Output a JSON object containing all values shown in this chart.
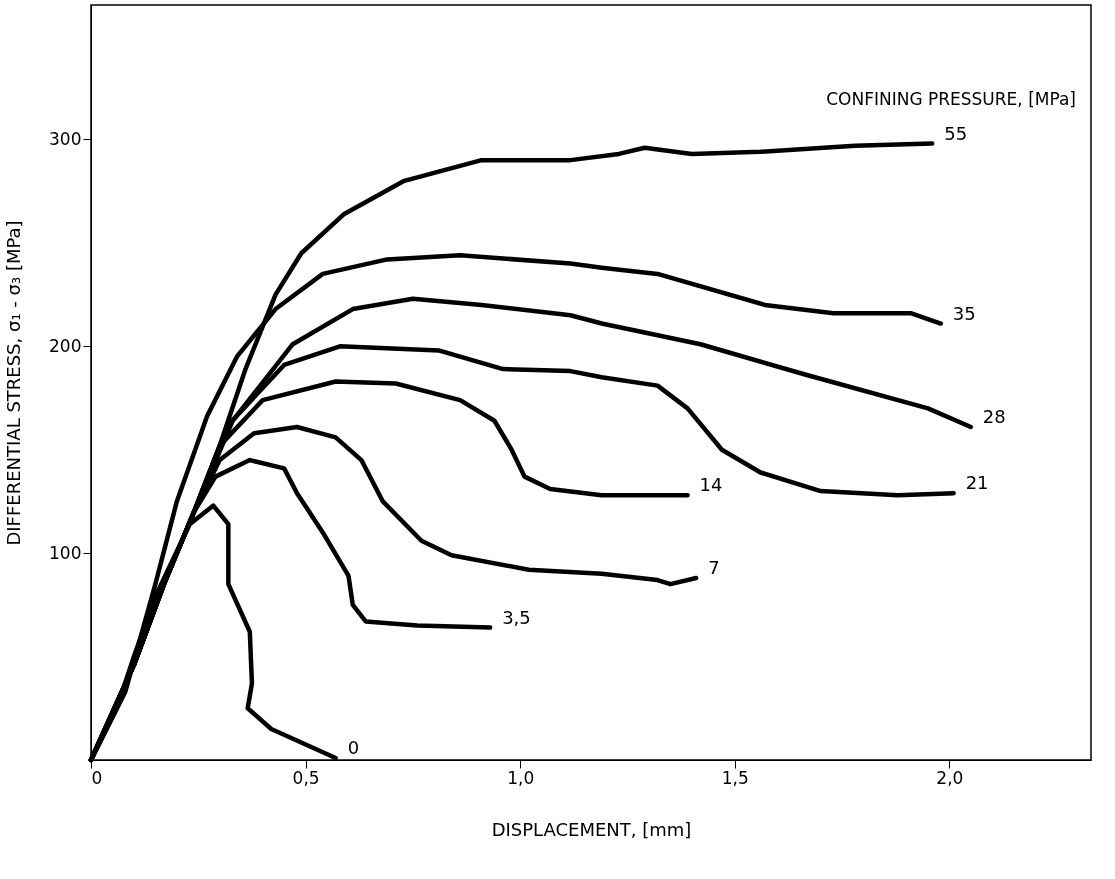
{
  "chart_data": {
    "type": "line",
    "xlabel": "DISPLACEMENT, [mm]",
    "ylabel": "DIFFERENTIAL STRESS, σ₁ - σ₃ [MPa]",
    "annotations": [
      "CONFINING PRESSURE, [MPa]"
    ],
    "xlim": [
      0,
      2.33
    ],
    "ylim": [
      0,
      365
    ],
    "xticks": [
      {
        "value": 0,
        "label": "0"
      },
      {
        "value": 0.5,
        "label": "0,5"
      },
      {
        "value": 1.0,
        "label": "1,0"
      },
      {
        "value": 1.5,
        "label": "1,5"
      },
      {
        "value": 2.0,
        "label": "2,0"
      }
    ],
    "yticks": [
      100,
      200,
      300
    ],
    "grid": false,
    "legend": false,
    "marker": "none",
    "line_style": "solid",
    "series": [
      {
        "name": "0",
        "color": "#000000",
        "x": [
          0,
          0.06,
          0.1,
          0.15,
          0.23,
          0.285,
          0.32,
          0.32,
          0.37,
          0.375,
          0.365,
          0.42,
          0.57
        ],
        "values": [
          0,
          25,
          50,
          79,
          114,
          123,
          114,
          85,
          62,
          37,
          25,
          15,
          1
        ]
      },
      {
        "name": "3,5",
        "color": "#000000",
        "x": [
          0,
          0.1,
          0.17,
          0.24,
          0.29,
          0.37,
          0.45,
          0.48,
          0.54,
          0.6,
          0.61,
          0.64,
          0.76,
          0.93
        ],
        "values": [
          0,
          46,
          85,
          120,
          137,
          145,
          141,
          129,
          110,
          89,
          75,
          67,
          65,
          64
        ]
      },
      {
        "name": "7",
        "color": "#000000",
        "x": [
          0,
          0.1,
          0.17,
          0.24,
          0.3,
          0.38,
          0.48,
          0.57,
          0.63,
          0.68,
          0.77,
          0.84,
          1.02,
          1.19,
          1.32,
          1.35,
          1.41
        ],
        "values": [
          0,
          46,
          85,
          120,
          145,
          158,
          161,
          156,
          145,
          125,
          106,
          99,
          92,
          90,
          87,
          85,
          88
        ]
      },
      {
        "name": "14",
        "color": "#000000",
        "x": [
          0,
          0.1,
          0.17,
          0.24,
          0.3,
          0.4,
          0.57,
          0.71,
          0.86,
          0.94,
          0.98,
          1.01,
          1.07,
          1.19,
          1.27,
          1.39
        ],
        "values": [
          0,
          46,
          85,
          120,
          152,
          174,
          183,
          182,
          174,
          164,
          150,
          137,
          131,
          128,
          128,
          128
        ]
      },
      {
        "name": "21",
        "color": "#000000",
        "x": [
          0,
          0.1,
          0.17,
          0.24,
          0.32,
          0.45,
          0.58,
          0.81,
          0.96,
          1.117,
          1.19,
          1.32,
          1.39,
          1.47,
          1.56,
          1.7,
          1.88,
          2.01
        ],
        "values": [
          0,
          46,
          85,
          120,
          162,
          191,
          200,
          198,
          189,
          188,
          185,
          181,
          170,
          150,
          139,
          130,
          128,
          129
        ]
      },
      {
        "name": "28",
        "color": "#000000",
        "x": [
          0,
          0.1,
          0.17,
          0.24,
          0.33,
          0.47,
          0.61,
          0.75,
          0.91,
          1.117,
          1.19,
          1.42,
          1.67,
          1.95,
          2.05
        ],
        "values": [
          0,
          46,
          85,
          120,
          164,
          201,
          218,
          223,
          220,
          215,
          211,
          201,
          186,
          170,
          161
        ]
      },
      {
        "name": "35",
        "color": "#000000",
        "x": [
          0,
          0.08,
          0.15,
          0.2,
          0.27,
          0.34,
          0.43,
          0.54,
          0.69,
          0.86,
          1.117,
          1.19,
          1.32,
          1.57,
          1.73,
          1.91,
          1.98
        ],
        "values": [
          0,
          33,
          85,
          125,
          166,
          195,
          218,
          235,
          242,
          244,
          240,
          238,
          235,
          220,
          216,
          216,
          211
        ]
      },
      {
        "name": "55",
        "color": "#000000",
        "x": [
          0,
          0.1,
          0.17,
          0.24,
          0.3,
          0.36,
          0.43,
          0.49,
          0.59,
          0.73,
          0.91,
          1.117,
          1.23,
          1.29,
          1.4,
          1.56,
          1.78,
          1.96
        ],
        "values": [
          0,
          46,
          85,
          120,
          152,
          189,
          225,
          245,
          264,
          280,
          290,
          290,
          293,
          296,
          293,
          294,
          297,
          298
        ]
      }
    ]
  }
}
